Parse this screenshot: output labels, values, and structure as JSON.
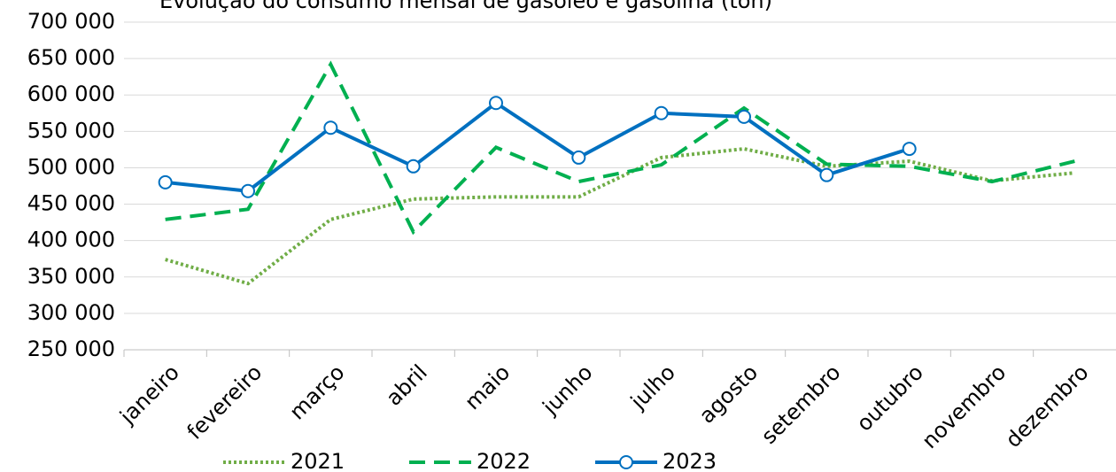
{
  "chart_data": {
    "type": "line",
    "title": "Evolução do consumo mensal de gasóleo e gasolina (ton)",
    "categories": [
      "janeiro",
      "fevereiro",
      "março",
      "abril",
      "maio",
      "junho",
      "julho",
      "agosto",
      "setembro",
      "outubro",
      "novembro",
      "dezembro"
    ],
    "series": [
      {
        "name": "2021",
        "color": "#70ad47",
        "line_style": "dotted",
        "values": [
          374000,
          341000,
          429000,
          457000,
          460000,
          460000,
          514000,
          526000,
          502000,
          509000,
          482000,
          493000
        ]
      },
      {
        "name": "2022",
        "color": "#00b050",
        "line_style": "dashed",
        "values": [
          429000,
          443000,
          642000,
          412000,
          528000,
          481000,
          504000,
          582000,
          505000,
          502000,
          481000,
          509000
        ]
      },
      {
        "name": "2023",
        "color": "#0070c0",
        "line_style": "solid",
        "marker": "circle",
        "values": [
          480000,
          468000,
          555000,
          502000,
          589000,
          514000,
          575000,
          570000,
          490000,
          526000,
          null,
          null
        ]
      }
    ],
    "ylim": [
      250000,
      700000
    ],
    "yticks": [
      {
        "value": 250000,
        "label": "250 000"
      },
      {
        "value": 300000,
        "label": "300 000"
      },
      {
        "value": 350000,
        "label": "350 000"
      },
      {
        "value": 400000,
        "label": "400 000"
      },
      {
        "value": 450000,
        "label": "450 000"
      },
      {
        "value": 500000,
        "label": "500 000"
      },
      {
        "value": 550000,
        "label": "550 000"
      },
      {
        "value": 600000,
        "label": "600 000"
      },
      {
        "value": 650000,
        "label": "650 000"
      },
      {
        "value": 700000,
        "label": "700 000"
      }
    ],
    "grid": true,
    "legend": "bottom"
  }
}
